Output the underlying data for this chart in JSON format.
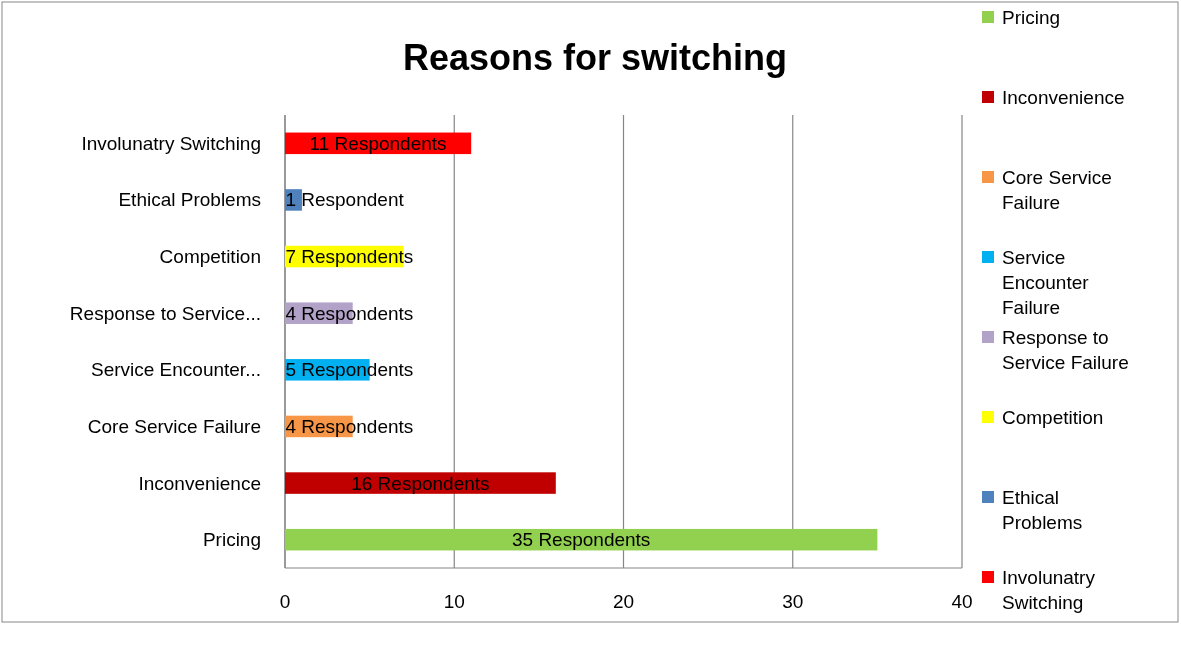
{
  "chart_data": {
    "type": "bar",
    "orientation": "horizontal",
    "stacked": true,
    "title": "Reasons for switching",
    "categories": [
      "Involunatry Switching",
      "Ethical Problems",
      "Competition",
      "Response to Service...",
      "Service Encounter...",
      "Core Service Failure",
      "Inconvenience",
      "Pricing"
    ],
    "series": [
      {
        "name": "Pricing",
        "color": "#92d050",
        "values": [
          null,
          null,
          null,
          null,
          null,
          null,
          null,
          35
        ],
        "value_labels": [
          null,
          null,
          null,
          null,
          null,
          null,
          null,
          "35 Respondents"
        ]
      },
      {
        "name": "Inconvenience",
        "color": "#c00000",
        "values": [
          null,
          null,
          null,
          null,
          null,
          null,
          16,
          null
        ],
        "value_labels": [
          null,
          null,
          null,
          null,
          null,
          null,
          "16 Respondents",
          null
        ]
      },
      {
        "name": "Core Service Failure",
        "color": "#f79646",
        "values": [
          null,
          null,
          null,
          null,
          null,
          4,
          null,
          null
        ],
        "value_labels": [
          null,
          null,
          null,
          null,
          null,
          "4 Respondents",
          null,
          null
        ]
      },
      {
        "name": "Service Encounter Failure",
        "color": "#00b0f0",
        "values": [
          null,
          null,
          null,
          null,
          5,
          null,
          null,
          null
        ],
        "value_labels": [
          null,
          null,
          null,
          null,
          "5 Respondents",
          null,
          null,
          null
        ]
      },
      {
        "name": "Response to Service Failure",
        "color": "#b3a2c7",
        "values": [
          null,
          null,
          null,
          4,
          null,
          null,
          null,
          null
        ],
        "value_labels": [
          null,
          null,
          null,
          "4 Respondents",
          null,
          null,
          null,
          null
        ]
      },
      {
        "name": "Competition",
        "color": "#ffff00",
        "values": [
          null,
          null,
          7,
          null,
          null,
          null,
          null,
          null
        ],
        "value_labels": [
          null,
          null,
          "7 Respondents",
          null,
          null,
          null,
          null,
          null
        ]
      },
      {
        "name": "Ethical Problems",
        "color": "#4f81bd",
        "values": [
          null,
          1,
          null,
          null,
          null,
          null,
          null,
          null
        ],
        "value_labels": [
          null,
          "1 Respondent",
          null,
          null,
          null,
          null,
          null,
          null
        ]
      },
      {
        "name": "Involunatry Switching",
        "color": "#ff0000",
        "values": [
          11,
          null,
          null,
          null,
          null,
          null,
          null,
          null
        ],
        "value_labels": [
          "11 Respondents",
          null,
          null,
          null,
          null,
          null,
          null,
          null
        ]
      }
    ],
    "xlim": [
      0,
      40
    ],
    "xticks": [
      0,
      10,
      20,
      30,
      40
    ],
    "grid": "x",
    "legend": "right"
  }
}
